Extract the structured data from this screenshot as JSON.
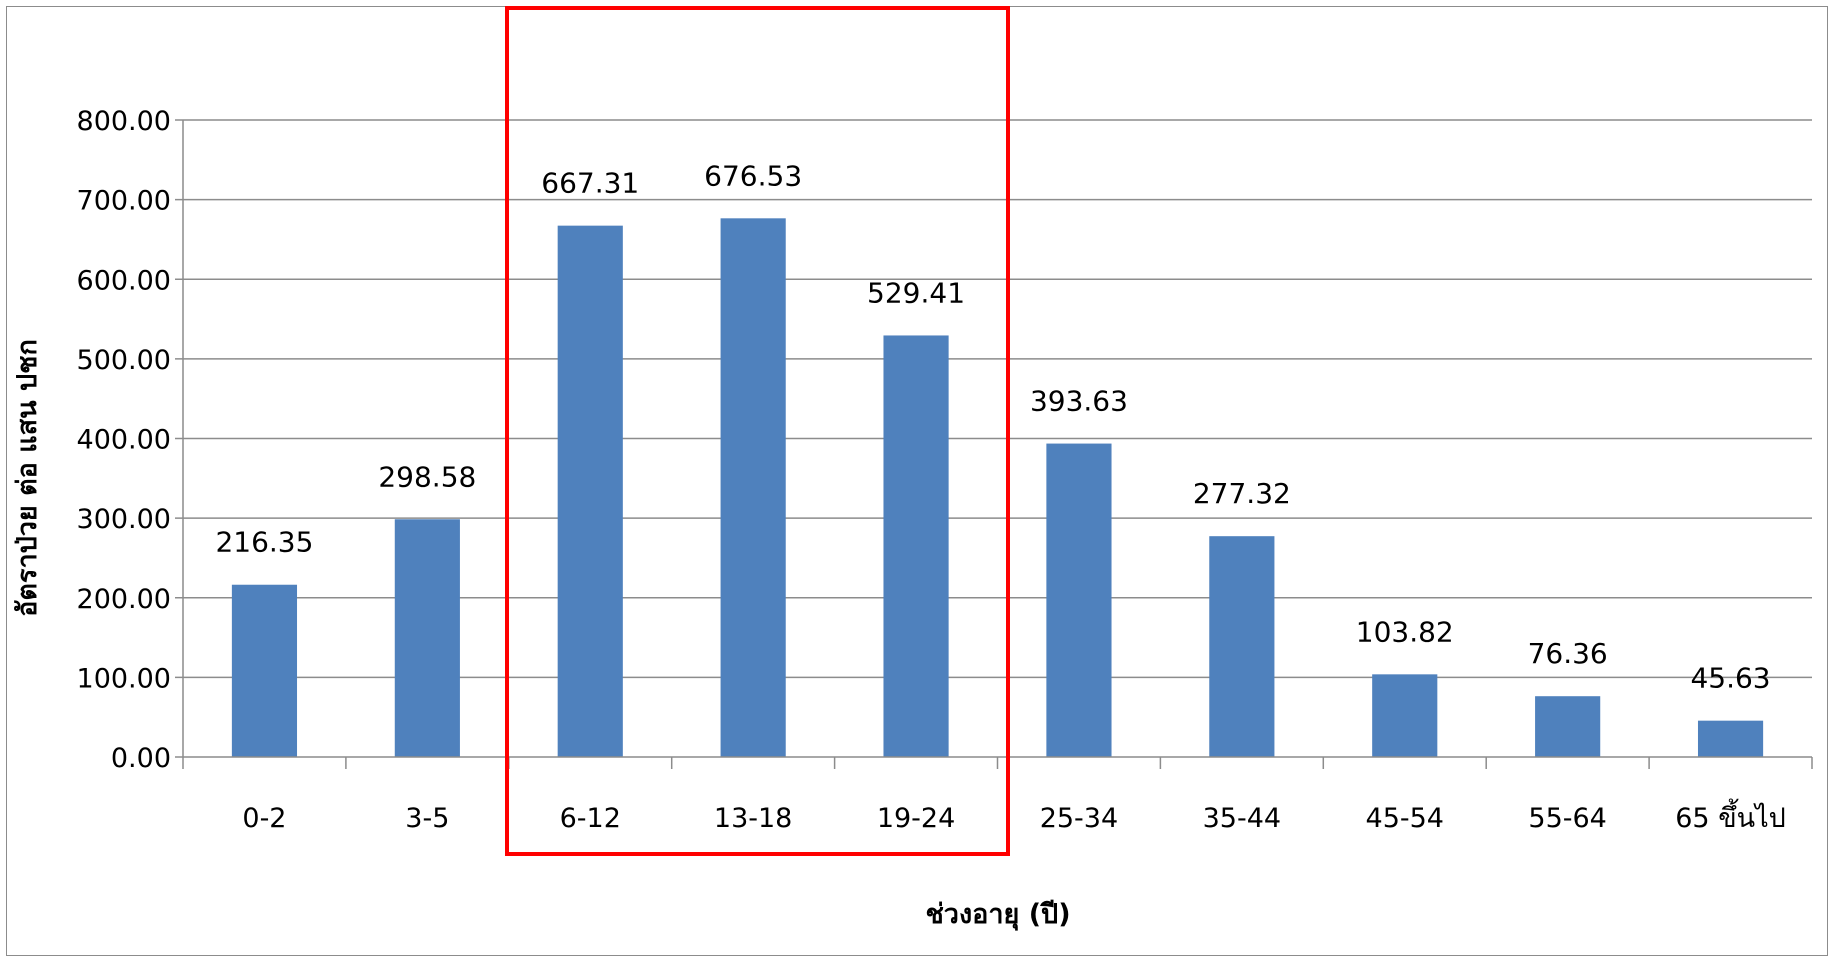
{
  "chart_data": {
    "type": "bar",
    "categories": [
      "0-2",
      "3-5",
      "6-12",
      "13-18",
      "19-24",
      "25-34",
      "35-44",
      "45-54",
      "55-64",
      "65 ขึ้นไป"
    ],
    "values": [
      216.35,
      298.58,
      667.31,
      676.53,
      529.41,
      393.63,
      277.32,
      103.82,
      76.36,
      45.63
    ],
    "data_labels": [
      "216.35",
      "298.58",
      "667.31",
      "676.53",
      "529.41",
      "393.63",
      "277.32",
      "103.82",
      "76.36",
      "45.63"
    ],
    "ytick_labels": [
      "0.00",
      "100.00",
      "200.00",
      "300.00",
      "400.00",
      "500.00",
      "600.00",
      "700.00",
      "800.00"
    ],
    "ylim": [
      0,
      800
    ],
    "y_step": 100,
    "xlabel": "ช่วงอายุ (ปี)",
    "ylabel": "อัตราป่วย ต่อ แสน ปชก",
    "title": "",
    "grid": true,
    "legend": "none",
    "bar_color": "#4f81bd",
    "highlight": {
      "categories": [
        "6-12",
        "13-18",
        "19-24"
      ],
      "color": "#ff0000"
    }
  }
}
